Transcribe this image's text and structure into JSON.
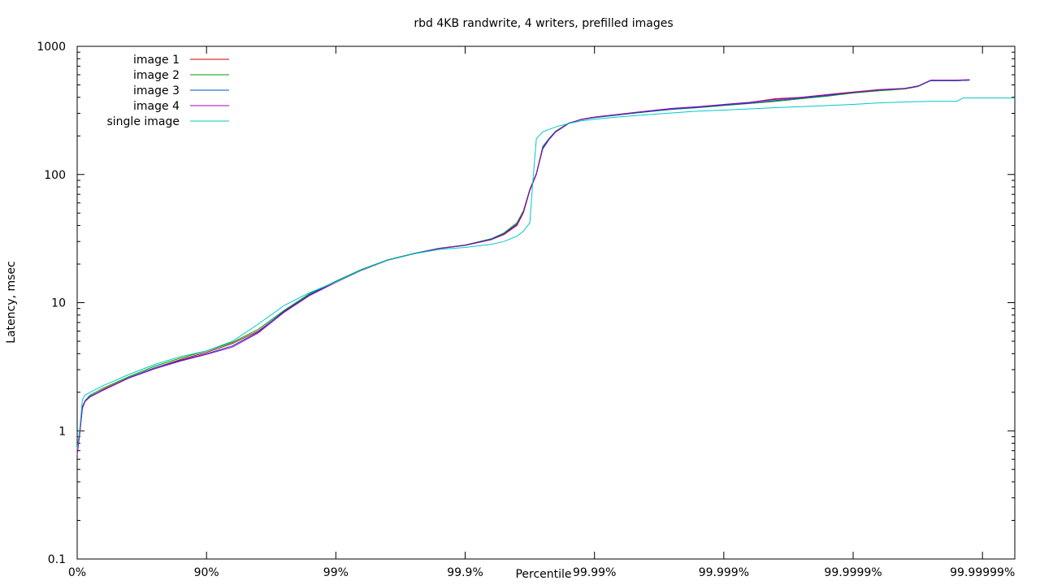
{
  "chart_data": {
    "type": "line",
    "title": "rbd 4KB randwrite, 4 writers, prefilled images",
    "xlabel": "Percentile",
    "ylabel": "Latency, msec",
    "x_scale": "-log10(1 - p)",
    "y_scale": "log",
    "xlim": [
      0,
      7.25
    ],
    "ylim": [
      0.1,
      1000
    ],
    "x_tick_labels": [
      "0%",
      "90%",
      "99%",
      "99.9%",
      "99.99%",
      "99.999%",
      "99.9999%",
      "99.99999%"
    ],
    "y_tick_labels": [
      "0.1",
      "1",
      "10",
      "100",
      "1000"
    ],
    "grid": false,
    "legend_position": "top-left",
    "series": [
      {
        "name": "image 1",
        "color": "#cc0000",
        "x": [
          0,
          0.02,
          0.04,
          0.06,
          0.1,
          0.2,
          0.4,
          0.6,
          0.8,
          1.0,
          1.2,
          1.4,
          1.6,
          1.8,
          2.0,
          2.2,
          2.4,
          2.6,
          2.8,
          3.0,
          3.2,
          3.3,
          3.4,
          3.45,
          3.5,
          3.55,
          3.6,
          3.65,
          3.7,
          3.8,
          3.9,
          4.0,
          4.2,
          4.4,
          4.6,
          4.8,
          5.0,
          5.2,
          5.4,
          5.6,
          5.8,
          5.9,
          6.0,
          6.2,
          6.4,
          6.5,
          6.6,
          6.8,
          6.9
        ],
        "y": [
          0.65,
          0.95,
          1.5,
          1.7,
          1.85,
          2.1,
          2.6,
          3.1,
          3.6,
          4.1,
          4.8,
          6.0,
          8.5,
          11.5,
          14.5,
          18.0,
          21.5,
          24.0,
          26.5,
          28.0,
          31.0,
          34.0,
          40.0,
          50.0,
          75.0,
          100.0,
          160.0,
          190.0,
          215.0,
          250.0,
          270.0,
          280.0,
          295.0,
          310.0,
          325.0,
          335.0,
          350.0,
          365.0,
          390.0,
          400.0,
          420.0,
          430.0,
          440.0,
          460.0,
          470.0,
          490.0,
          540.0,
          540.0,
          545.0
        ]
      },
      {
        "name": "image 2",
        "color": "#00a000",
        "x": [
          0,
          0.02,
          0.04,
          0.06,
          0.1,
          0.2,
          0.4,
          0.6,
          0.8,
          1.0,
          1.2,
          1.4,
          1.6,
          1.8,
          2.0,
          2.2,
          2.4,
          2.6,
          2.8,
          3.0,
          3.2,
          3.3,
          3.4,
          3.45,
          3.5,
          3.55,
          3.6,
          3.65,
          3.7,
          3.8,
          3.9,
          4.0,
          4.2,
          4.4,
          4.6,
          4.8,
          5.0,
          5.2,
          5.4,
          5.6,
          5.8,
          5.9,
          6.0,
          6.2,
          6.4,
          6.5,
          6.6,
          6.8,
          6.9
        ],
        "y": [
          0.7,
          1.0,
          1.55,
          1.72,
          1.9,
          2.15,
          2.65,
          3.2,
          3.7,
          4.2,
          4.9,
          6.2,
          8.7,
          11.8,
          14.7,
          18.2,
          21.6,
          24.2,
          26.6,
          28.2,
          31.5,
          35.0,
          42.0,
          52.0,
          77.0,
          102.0,
          165.0,
          192.0,
          218.0,
          252.0,
          268.0,
          278.0,
          292.0,
          308.0,
          322.0,
          332.0,
          345.0,
          358.0,
          372.0,
          390.0,
          408.0,
          420.0,
          432.0,
          450.0,
          465.0,
          485.0,
          540.0,
          540.0,
          545.0
        ]
      },
      {
        "name": "image 3",
        "color": "#0050c8",
        "x": [
          0,
          0.02,
          0.04,
          0.06,
          0.1,
          0.2,
          0.4,
          0.6,
          0.8,
          1.0,
          1.2,
          1.4,
          1.6,
          1.8,
          2.0,
          2.2,
          2.4,
          2.6,
          2.8,
          3.0,
          3.2,
          3.3,
          3.4,
          3.45,
          3.5,
          3.55,
          3.6,
          3.65,
          3.7,
          3.8,
          3.9,
          4.0,
          4.2,
          4.4,
          4.6,
          4.8,
          5.0,
          5.2,
          5.4,
          5.6,
          5.8,
          5.9,
          6.0,
          6.2,
          6.4,
          6.5,
          6.6,
          6.8,
          6.9
        ],
        "y": [
          0.68,
          0.98,
          1.52,
          1.7,
          1.86,
          2.08,
          2.6,
          3.1,
          3.55,
          4.0,
          4.6,
          5.9,
          8.6,
          11.6,
          14.6,
          18.1,
          21.5,
          24.1,
          26.5,
          28.1,
          31.2,
          34.5,
          41.0,
          51.0,
          76.0,
          101.0,
          162.0,
          191.0,
          216.0,
          251.0,
          269.0,
          279.0,
          294.0,
          309.0,
          324.0,
          334.0,
          348.0,
          360.0,
          378.0,
          395.0,
          412.0,
          425.0,
          436.0,
          455.0,
          468.0,
          488.0,
          540.0,
          540.0,
          545.0
        ]
      },
      {
        "name": "image 4",
        "color": "#a000c0",
        "x": [
          0,
          0.02,
          0.04,
          0.06,
          0.1,
          0.2,
          0.4,
          0.6,
          0.8,
          1.0,
          1.2,
          1.4,
          1.6,
          1.8,
          2.0,
          2.2,
          2.4,
          2.6,
          2.8,
          3.0,
          3.2,
          3.3,
          3.4,
          3.45,
          3.5,
          3.55,
          3.6,
          3.65,
          3.7,
          3.8,
          3.9,
          4.0,
          4.2,
          4.4,
          4.6,
          4.8,
          5.0,
          5.2,
          5.4,
          5.6,
          5.8,
          5.9,
          6.0,
          6.2,
          6.4,
          6.5,
          6.6,
          6.8,
          6.9
        ],
        "y": [
          0.66,
          0.96,
          1.5,
          1.69,
          1.84,
          2.07,
          2.58,
          3.05,
          3.5,
          3.95,
          4.5,
          5.8,
          8.4,
          11.4,
          14.4,
          17.9,
          21.4,
          24.0,
          26.4,
          28.0,
          31.0,
          34.2,
          40.5,
          50.5,
          75.5,
          100.5,
          158.0,
          188.0,
          214.0,
          250.0,
          270.0,
          281.0,
          296.0,
          312.0,
          328.0,
          338.0,
          352.0,
          366.0,
          385.0,
          400.0,
          418.0,
          428.0,
          438.0,
          458.0,
          470.0,
          490.0,
          545.0,
          545.0,
          550.0
        ]
      },
      {
        "name": "single image",
        "color": "#00c8c8",
        "x": [
          0,
          0.02,
          0.04,
          0.06,
          0.1,
          0.2,
          0.4,
          0.6,
          0.8,
          1.0,
          1.2,
          1.4,
          1.6,
          1.8,
          2.0,
          2.2,
          2.4,
          2.6,
          2.8,
          3.0,
          3.2,
          3.3,
          3.4,
          3.45,
          3.5,
          3.52,
          3.55,
          3.58,
          3.6,
          3.7,
          3.8,
          3.9,
          4.0,
          4.2,
          4.4,
          4.6,
          4.8,
          5.0,
          5.2,
          5.4,
          5.6,
          5.8,
          6.0,
          6.2,
          6.4,
          6.6,
          6.8,
          6.85,
          6.9,
          7.25
        ],
        "y": [
          0.72,
          1.05,
          1.75,
          1.9,
          2.0,
          2.25,
          2.75,
          3.3,
          3.8,
          4.2,
          5.0,
          6.8,
          9.5,
          12.0,
          14.5,
          18.0,
          21.5,
          24.0,
          26.0,
          27.0,
          28.5,
          30.0,
          33.0,
          36.0,
          42.0,
          80.0,
          190.0,
          205.0,
          215.0,
          235.0,
          250.0,
          262.0,
          270.0,
          282.0,
          292.0,
          302.0,
          312.0,
          318.0,
          325.0,
          332.0,
          338.0,
          345.0,
          352.0,
          362.0,
          368.0,
          372.0,
          372.0,
          395.0,
          395.0,
          395.0
        ]
      }
    ]
  }
}
